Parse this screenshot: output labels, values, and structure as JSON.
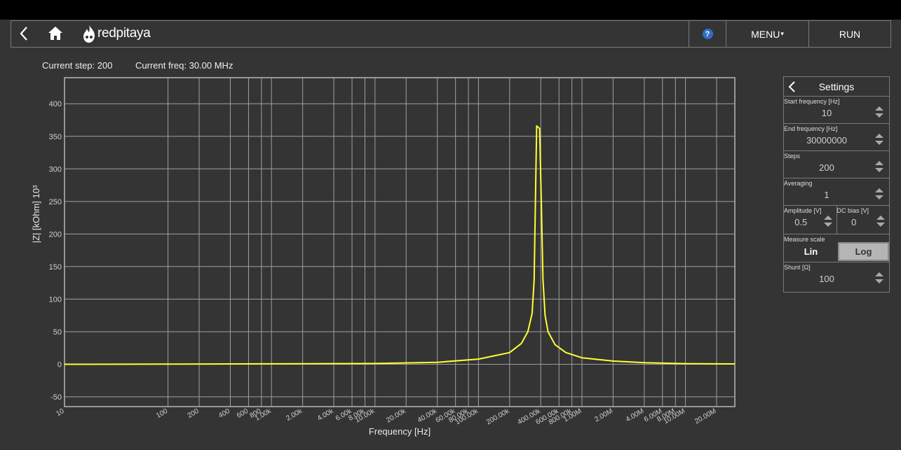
{
  "nav": {
    "brand": "redpitaya",
    "menu_label": "MENU",
    "run_label": "RUN",
    "help_label": "?"
  },
  "status": {
    "step": "Current step: 200",
    "freq": "Current freq: 30.00 MHz"
  },
  "settings": {
    "title": "Settings",
    "start_freq": {
      "label": "Start frequency [Hz]",
      "value": "10"
    },
    "end_freq": {
      "label": "End frequency [Hz]",
      "value": "30000000"
    },
    "steps": {
      "label": "Steps",
      "value": "200"
    },
    "averaging": {
      "label": "Averaging",
      "value": "1"
    },
    "amplitude": {
      "label": "Amplitude [V]",
      "value": "0.5"
    },
    "dc_bias": {
      "label": "DC bias [V]",
      "value": "0"
    },
    "measure_scale": {
      "label": "Measure scale",
      "lin": "Lin",
      "log": "Log",
      "selected": "Log"
    },
    "shunt": {
      "label": "Shunt [Ω]",
      "value": "100"
    }
  },
  "colors": {
    "background": "#343434",
    "trace": "#ffff33",
    "grid": "#a0a0a0",
    "help_badge": "#2f6fc8",
    "toggle_active": "#b5b5b5"
  },
  "chart_data": {
    "type": "line",
    "xlabel": "Frequency [Hz]",
    "ylabel": "|Z| [kOhm] 10³",
    "xscale": "log",
    "xlim": [
      10,
      30000000
    ],
    "ylim": [
      -65,
      440
    ],
    "grid": true,
    "yticks": [
      -50,
      0,
      50,
      100,
      150,
      200,
      250,
      300,
      350,
      400
    ],
    "xticks": [
      {
        "v": 10,
        "label": "10"
      },
      {
        "v": 100,
        "label": "100"
      },
      {
        "v": 200,
        "label": "200"
      },
      {
        "v": 400,
        "label": "400"
      },
      {
        "v": 600,
        "label": "600"
      },
      {
        "v": 800,
        "label": "800"
      },
      {
        "v": 1000,
        "label": "1.00k"
      },
      {
        "v": 2000,
        "label": "2.00k"
      },
      {
        "v": 4000,
        "label": "4.00k"
      },
      {
        "v": 6000,
        "label": "6.00k"
      },
      {
        "v": 8000,
        "label": "8.00k"
      },
      {
        "v": 10000,
        "label": "10.00k"
      },
      {
        "v": 20000,
        "label": "20.00k"
      },
      {
        "v": 40000,
        "label": "40.00k"
      },
      {
        "v": 60000,
        "label": "60.00k"
      },
      {
        "v": 80000,
        "label": "80.00k"
      },
      {
        "v": 100000,
        "label": "100.00k"
      },
      {
        "v": 200000,
        "label": "200.00k"
      },
      {
        "v": 400000,
        "label": "400.00k"
      },
      {
        "v": 600000,
        "label": "600.00k"
      },
      {
        "v": 800000,
        "label": "800.00k"
      },
      {
        "v": 1000000,
        "label": "1.00M"
      },
      {
        "v": 2000000,
        "label": "2.00M"
      },
      {
        "v": 4000000,
        "label": "4.00M"
      },
      {
        "v": 6000000,
        "label": "6.00M"
      },
      {
        "v": 8000000,
        "label": "8.00M"
      },
      {
        "v": 10000000,
        "label": "10.00M"
      },
      {
        "v": 20000000,
        "label": "20.00M"
      }
    ],
    "series": [
      {
        "points": [
          [
            10,
            0
          ],
          [
            100,
            0.2
          ],
          [
            1000,
            0.6
          ],
          [
            10000,
            1.2
          ],
          [
            40000,
            3
          ],
          [
            100000,
            8
          ],
          [
            200000,
            18
          ],
          [
            260000,
            32
          ],
          [
            300000,
            50
          ],
          [
            330000,
            78
          ],
          [
            345000,
            130
          ],
          [
            355000,
            250
          ],
          [
            365000,
            366
          ],
          [
            390000,
            362
          ],
          [
            405000,
            250
          ],
          [
            420000,
            130
          ],
          [
            440000,
            75
          ],
          [
            470000,
            50
          ],
          [
            550000,
            30
          ],
          [
            700000,
            18
          ],
          [
            1000000,
            10
          ],
          [
            2000000,
            5
          ],
          [
            4000000,
            2.5
          ],
          [
            10000000,
            1
          ],
          [
            30000000,
            0.5
          ]
        ]
      }
    ]
  }
}
